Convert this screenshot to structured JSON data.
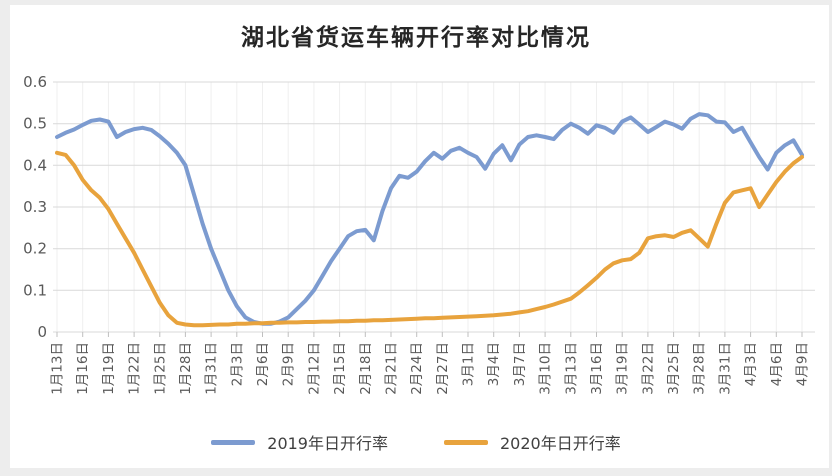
{
  "chart_data": {
    "type": "line",
    "title": "湖北省货运车辆开行率对比情况",
    "xlabel": "",
    "ylabel": "",
    "ylim": [
      0,
      0.6
    ],
    "y_tick_labels": [
      "0",
      "0.1",
      "0.2",
      "0.3",
      "0.4",
      "0.5",
      "0.6"
    ],
    "x_tick_every": 3,
    "grid": "horizontal solid light, vertical faint at labeled ticks",
    "legend_position": "bottom-center",
    "x": [
      "1月13日",
      "1月14日",
      "1月15日",
      "1月16日",
      "1月17日",
      "1月18日",
      "1月19日",
      "1月20日",
      "1月21日",
      "1月22日",
      "1月23日",
      "1月24日",
      "1月25日",
      "1月26日",
      "1月27日",
      "1月28日",
      "1月29日",
      "1月30日",
      "1月31日",
      "2月1日",
      "2月2日",
      "2月3日",
      "2月4日",
      "2月5日",
      "2月6日",
      "2月7日",
      "2月8日",
      "2月9日",
      "2月10日",
      "2月11日",
      "2月12日",
      "2月13日",
      "2月14日",
      "2月15日",
      "2月16日",
      "2月17日",
      "2月18日",
      "2月19日",
      "2月20日",
      "2月21日",
      "2月22日",
      "2月23日",
      "2月24日",
      "2月25日",
      "2月26日",
      "2月27日",
      "2月28日",
      "2月29日",
      "3月1日",
      "3月2日",
      "3月3日",
      "3月4日",
      "3月5日",
      "3月6日",
      "3月7日",
      "3月8日",
      "3月9日",
      "3月10日",
      "3月11日",
      "3月12日",
      "3月13日",
      "3月14日",
      "3月15日",
      "3月16日",
      "3月17日",
      "3月18日",
      "3月19日",
      "3月20日",
      "3月21日",
      "3月22日",
      "3月23日",
      "3月24日",
      "3月25日",
      "3月26日",
      "3月27日",
      "3月28日",
      "3月29日",
      "3月30日",
      "3月31日",
      "4月1日",
      "4月2日",
      "4月3日",
      "4月4日",
      "4月5日",
      "4月6日",
      "4月7日",
      "4月8日",
      "4月9日"
    ],
    "series": [
      {
        "name": "2019年日开行率",
        "color": "#7C9BD0",
        "values": [
          0.468,
          0.478,
          0.486,
          0.497,
          0.507,
          0.51,
          0.505,
          0.468,
          0.48,
          0.487,
          0.49,
          0.485,
          0.47,
          0.452,
          0.43,
          0.4,
          0.33,
          0.26,
          0.2,
          0.15,
          0.1,
          0.062,
          0.035,
          0.024,
          0.02,
          0.02,
          0.025,
          0.035,
          0.055,
          0.075,
          0.1,
          0.135,
          0.17,
          0.2,
          0.23,
          0.242,
          0.245,
          0.22,
          0.29,
          0.345,
          0.375,
          0.37,
          0.385,
          0.41,
          0.43,
          0.416,
          0.435,
          0.442,
          0.43,
          0.42,
          0.392,
          0.428,
          0.448,
          0.412,
          0.45,
          0.468,
          0.472,
          0.468,
          0.463,
          0.485,
          0.5,
          0.49,
          0.476,
          0.496,
          0.49,
          0.478,
          0.505,
          0.515,
          0.498,
          0.48,
          0.492,
          0.505,
          0.498,
          0.488,
          0.512,
          0.523,
          0.52,
          0.505,
          0.503,
          0.48,
          0.49,
          0.455,
          0.42,
          0.39,
          0.43,
          0.448,
          0.46,
          0.425
        ]
      },
      {
        "name": "2020年日开行率",
        "color": "#E8A33D",
        "values": [
          0.43,
          0.425,
          0.4,
          0.365,
          0.34,
          0.322,
          0.295,
          0.26,
          0.225,
          0.19,
          0.15,
          0.11,
          0.07,
          0.04,
          0.022,
          0.018,
          0.016,
          0.016,
          0.017,
          0.018,
          0.018,
          0.02,
          0.02,
          0.021,
          0.021,
          0.022,
          0.022,
          0.023,
          0.023,
          0.024,
          0.024,
          0.025,
          0.025,
          0.026,
          0.026,
          0.027,
          0.027,
          0.028,
          0.028,
          0.029,
          0.03,
          0.031,
          0.032,
          0.033,
          0.033,
          0.034,
          0.035,
          0.036,
          0.037,
          0.038,
          0.039,
          0.04,
          0.042,
          0.044,
          0.047,
          0.05,
          0.055,
          0.06,
          0.066,
          0.073,
          0.08,
          0.095,
          0.112,
          0.13,
          0.15,
          0.165,
          0.172,
          0.175,
          0.19,
          0.225,
          0.23,
          0.232,
          0.228,
          0.238,
          0.244,
          0.225,
          0.205,
          0.26,
          0.31,
          0.335,
          0.34,
          0.345,
          0.3,
          0.33,
          0.36,
          0.385,
          0.405,
          0.42
        ]
      }
    ]
  },
  "style": {
    "grid_color_h": "#d9d9d9",
    "grid_color_v": "#efefef",
    "tick_color": "#bfbfbf",
    "axis_text_color": "#595959",
    "line_width": 4
  }
}
